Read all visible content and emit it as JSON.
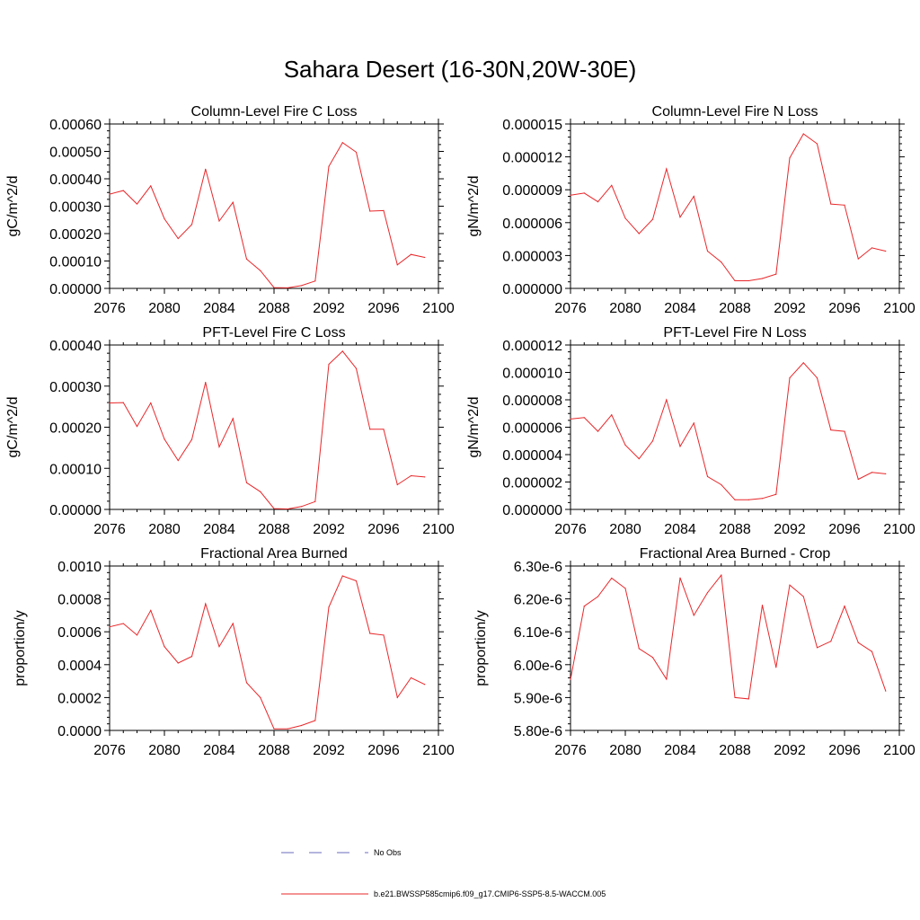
{
  "title": "Sahara Desert (16-30N,20W-30E)",
  "colors": {
    "model": "#e8272a",
    "obs": "#6b6bbd",
    "axis": "#000000"
  },
  "legend": {
    "obs_label": "No Obs",
    "model_label": "b.e21.BWSSP585cmip6.f09_g17.CMIP6-SSP5-8.5-WACCM.005"
  },
  "chart_data": [
    {
      "type": "line",
      "title": "Column-Level Fire C Loss",
      "ylabel": "gC/m^2/d",
      "xlim": [
        2076,
        2100
      ],
      "ylim": [
        0,
        0.0006
      ],
      "yticks": [
        "0.00000",
        "0.00010",
        "0.00020",
        "0.00030",
        "0.00040",
        "0.00050",
        "0.00060"
      ],
      "xticks": [
        "2076",
        "2080",
        "2084",
        "2088",
        "2092",
        "2096",
        "2100"
      ],
      "x": [
        2076,
        2077,
        2078,
        2079,
        2080,
        2081,
        2082,
        2083,
        2084,
        2085,
        2086,
        2087,
        2088,
        2089,
        2090,
        2091,
        2092,
        2093,
        2094,
        2095,
        2096,
        2097,
        2098,
        2099
      ],
      "values": [
        0.000344,
        0.000357,
        0.000308,
        0.000374,
        0.000254,
        0.000182,
        0.000233,
        0.000435,
        0.000246,
        0.000314,
        0.000107,
        6.5e-05,
        3e-06,
        2e-06,
        1e-05,
        2.7e-05,
        0.000445,
        0.000532,
        0.000497,
        0.000282,
        0.000284,
        8.6e-05,
        0.000124,
        0.000113
      ]
    },
    {
      "type": "line",
      "title": "Column-Level Fire N Loss",
      "ylabel": "gN/m^2/d",
      "xlim": [
        2076,
        2100
      ],
      "ylim": [
        0,
        1.5e-05
      ],
      "yticks": [
        "0.000000",
        "0.000003",
        "0.000006",
        "0.000009",
        "0.000012",
        "0.000015"
      ],
      "xticks": [
        "2076",
        "2080",
        "2084",
        "2088",
        "2092",
        "2096",
        "2100"
      ],
      "x": [
        2076,
        2077,
        2078,
        2079,
        2080,
        2081,
        2082,
        2083,
        2084,
        2085,
        2086,
        2087,
        2088,
        2089,
        2090,
        2091,
        2092,
        2093,
        2094,
        2095,
        2096,
        2097,
        2098,
        2099
      ],
      "values": [
        8.5e-06,
        8.7e-06,
        7.9e-06,
        9.4e-06,
        6.4e-06,
        5e-06,
        6.3e-06,
        1.09e-05,
        6.5e-06,
        8.4e-06,
        3.4e-06,
        2.4e-06,
        7e-07,
        7e-07,
        9e-07,
        1.3e-06,
        1.19e-05,
        1.41e-05,
        1.32e-05,
        7.7e-06,
        7.6e-06,
        2.7e-06,
        3.7e-06,
        3.4e-06
      ]
    },
    {
      "type": "line",
      "title": "PFT-Level Fire C Loss",
      "ylabel": "gC/m^2/d",
      "xlim": [
        2076,
        2100
      ],
      "ylim": [
        0,
        0.0004
      ],
      "yticks": [
        "0.00000",
        "0.00010",
        "0.00020",
        "0.00030",
        "0.00040"
      ],
      "xticks": [
        "2076",
        "2080",
        "2084",
        "2088",
        "2092",
        "2096",
        "2100"
      ],
      "x": [
        2076,
        2077,
        2078,
        2079,
        2080,
        2081,
        2082,
        2083,
        2084,
        2085,
        2086,
        2087,
        2088,
        2089,
        2090,
        2091,
        2092,
        2093,
        2094,
        2095,
        2096,
        2097,
        2098,
        2099
      ],
      "values": [
        0.000259,
        0.00026,
        0.000202,
        0.000259,
        0.000171,
        0.000119,
        0.00017,
        0.000309,
        0.000152,
        0.000221,
        6.5e-05,
        4.3e-05,
        2e-06,
        1e-06,
        7e-06,
        1.9e-05,
        0.000353,
        0.000385,
        0.000343,
        0.000195,
        0.000195,
        6e-05,
        8.2e-05,
        7.9e-05
      ]
    },
    {
      "type": "line",
      "title": "PFT-Level Fire N Loss",
      "ylabel": "gN/m^2/d",
      "xlim": [
        2076,
        2100
      ],
      "ylim": [
        0,
        1.2e-05
      ],
      "yticks": [
        "0.000000",
        "0.000002",
        "0.000004",
        "0.000006",
        "0.000008",
        "0.000010",
        "0.000012"
      ],
      "xticks": [
        "2076",
        "2080",
        "2084",
        "2088",
        "2092",
        "2096",
        "2100"
      ],
      "x": [
        2076,
        2077,
        2078,
        2079,
        2080,
        2081,
        2082,
        2083,
        2084,
        2085,
        2086,
        2087,
        2088,
        2089,
        2090,
        2091,
        2092,
        2093,
        2094,
        2095,
        2096,
        2097,
        2098,
        2099
      ],
      "values": [
        6.6e-06,
        6.7e-06,
        5.7e-06,
        6.9e-06,
        4.7e-06,
        3.7e-06,
        5e-06,
        8e-06,
        4.6e-06,
        6.3e-06,
        2.4e-06,
        1.8e-06,
        7e-07,
        7e-07,
        8e-07,
        1.1e-06,
        9.6e-06,
        1.07e-05,
        9.6e-06,
        5.8e-06,
        5.7e-06,
        2.2e-06,
        2.7e-06,
        2.6e-06
      ]
    },
    {
      "type": "line",
      "title": "Fractional Area Burned",
      "ylabel": "proportion/y",
      "xlim": [
        2076,
        2100
      ],
      "ylim": [
        0,
        0.001
      ],
      "yticks": [
        "0.0000",
        "0.0002",
        "0.0004",
        "0.0006",
        "0.0008",
        "0.0010"
      ],
      "xticks": [
        "2076",
        "2080",
        "2084",
        "2088",
        "2092",
        "2096",
        "2100"
      ],
      "x": [
        2076,
        2077,
        2078,
        2079,
        2080,
        2081,
        2082,
        2083,
        2084,
        2085,
        2086,
        2087,
        2088,
        2089,
        2090,
        2091,
        2092,
        2093,
        2094,
        2095,
        2096,
        2097,
        2098,
        2099
      ],
      "values": [
        0.00063,
        0.00065,
        0.00058,
        0.00073,
        0.00051,
        0.00041,
        0.00045,
        0.00077,
        0.00051,
        0.00065,
        0.00029,
        0.0002,
        1e-05,
        1e-05,
        3e-05,
        6e-05,
        0.00075,
        0.00094,
        0.00091,
        0.00059,
        0.00058,
        0.0002,
        0.00032,
        0.00028
      ]
    },
    {
      "type": "line",
      "title": "Fractional Area Burned - Crop",
      "ylabel": "proportion/y",
      "xlim": [
        2076,
        2100
      ],
      "ylim": [
        5.8e-06,
        6.3e-06
      ],
      "yticks": [
        "5.80e-6",
        "5.90e-6",
        "6.00e-6",
        "6.10e-6",
        "6.20e-6",
        "6.30e-6"
      ],
      "xticks": [
        "2076",
        "2080",
        "2084",
        "2088",
        "2092",
        "2096",
        "2100"
      ],
      "x": [
        2076,
        2077,
        2078,
        2079,
        2080,
        2081,
        2082,
        2083,
        2084,
        2085,
        2086,
        2087,
        2088,
        2089,
        2090,
        2091,
        2092,
        2093,
        2094,
        2095,
        2096,
        2097,
        2098,
        2099
      ],
      "values": [
        5.955e-06,
        6.178e-06,
        6.207e-06,
        6.263e-06,
        6.232e-06,
        6.049e-06,
        6.022e-06,
        5.956e-06,
        6.264e-06,
        6.15e-06,
        6.219e-06,
        6.272e-06,
        5.9e-06,
        5.896e-06,
        6.181e-06,
        5.992e-06,
        6.242e-06,
        6.207e-06,
        6.052e-06,
        6.071e-06,
        6.178e-06,
        6.067e-06,
        6.04e-06,
        5.92e-06
      ]
    }
  ]
}
